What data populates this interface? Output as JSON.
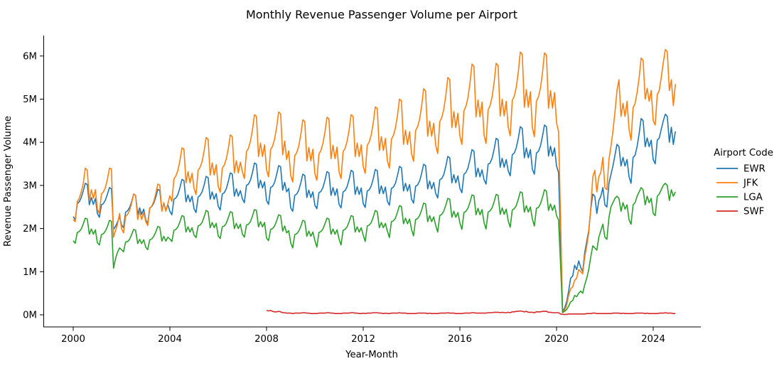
{
  "chart_data": {
    "type": "line",
    "title": "Monthly Revenue Passenger Volume per Airport",
    "xlabel": "Year-Month",
    "ylabel": "Revenue Passenger Volume",
    "legend_title": "Airport Code",
    "legend_position": "right",
    "grid": false,
    "x_unit": "monthly from 2000-01 to 2024-12",
    "y_unit": "millions of revenue passengers",
    "ylim": [
      -0.28,
      6.45
    ],
    "xlim": [
      1998.8,
      2026.0
    ],
    "x_tick_labels": [
      "2000",
      "2004",
      "2008",
      "2012",
      "2016",
      "2020",
      "2024"
    ],
    "y_tick_labels": [
      "0M",
      "1M",
      "2M",
      "3M",
      "4M",
      "5M",
      "6M"
    ],
    "y_tick_values": [
      0,
      1,
      2,
      3,
      4,
      5,
      6
    ],
    "series": [
      {
        "name": "EWR",
        "color": "#1f77b4",
        "start": "2000-01",
        "values_millions": [
          2.28,
          2.2,
          2.58,
          2.62,
          2.72,
          2.88,
          3.05,
          3.02,
          2.55,
          2.72,
          2.56,
          2.7,
          2.35,
          2.26,
          2.55,
          2.58,
          2.66,
          2.8,
          2.95,
          2.92,
          1.98,
          2.05,
          2.15,
          2.28,
          2.08,
          2.02,
          2.38,
          2.41,
          2.49,
          2.62,
          2.8,
          2.77,
          2.33,
          2.48,
          2.33,
          2.45,
          2.2,
          2.12,
          2.48,
          2.51,
          2.59,
          2.73,
          2.91,
          2.88,
          2.43,
          2.58,
          2.43,
          2.55,
          2.4,
          2.32,
          2.68,
          2.71,
          2.79,
          2.95,
          3.14,
          3.11,
          2.62,
          2.78,
          2.62,
          2.75,
          2.46,
          2.37,
          2.73,
          2.77,
          2.85,
          3.01,
          3.21,
          3.18,
          2.68,
          2.85,
          2.68,
          2.81,
          2.52,
          2.43,
          2.8,
          2.83,
          2.92,
          3.09,
          3.29,
          3.26,
          2.75,
          2.92,
          2.75,
          2.88,
          2.69,
          2.6,
          3.0,
          3.03,
          3.12,
          3.3,
          3.52,
          3.49,
          2.94,
          3.12,
          2.94,
          3.08,
          2.65,
          2.56,
          2.95,
          2.98,
          3.07,
          3.25,
          3.46,
          3.43,
          2.89,
          3.07,
          2.85,
          2.93,
          2.48,
          2.4,
          2.77,
          2.8,
          2.89,
          3.06,
          3.26,
          3.23,
          2.72,
          2.89,
          2.72,
          2.85,
          2.54,
          2.46,
          2.83,
          2.86,
          2.95,
          3.12,
          3.32,
          3.29,
          2.77,
          2.95,
          2.77,
          2.92,
          2.56,
          2.48,
          2.85,
          2.88,
          2.97,
          3.14,
          3.35,
          3.32,
          2.79,
          2.97,
          2.79,
          2.94,
          2.58,
          2.49,
          2.87,
          2.9,
          2.99,
          3.16,
          3.37,
          3.34,
          2.81,
          2.99,
          2.81,
          2.96,
          2.63,
          2.54,
          2.93,
          2.96,
          3.05,
          3.23,
          3.44,
          3.41,
          2.87,
          3.05,
          2.87,
          3.02,
          2.68,
          2.59,
          2.98,
          3.01,
          3.1,
          3.28,
          3.49,
          3.46,
          2.92,
          3.1,
          2.92,
          3.07,
          2.81,
          2.71,
          3.13,
          3.16,
          3.25,
          3.44,
          3.67,
          3.64,
          3.06,
          3.25,
          3.06,
          3.22,
          2.93,
          2.83,
          3.26,
          3.3,
          3.4,
          3.6,
          3.83,
          3.79,
          3.2,
          3.4,
          3.2,
          3.36,
          3.13,
          3.03,
          3.49,
          3.52,
          3.63,
          3.84,
          4.09,
          4.06,
          3.42,
          3.63,
          3.42,
          3.6,
          3.34,
          3.22,
          3.71,
          3.75,
          3.87,
          4.09,
          4.36,
          4.32,
          3.64,
          3.87,
          3.64,
          3.83,
          3.37,
          3.26,
          3.75,
          3.79,
          3.91,
          4.14,
          4.4,
          4.36,
          3.68,
          3.91,
          3.68,
          3.87,
          3.45,
          3.3,
          1.7,
          0.08,
          0.15,
          0.3,
          0.55,
          0.85,
          0.9,
          1.15,
          1.05,
          1.25,
          1.1,
          1.0,
          1.45,
          1.7,
          1.95,
          2.45,
          2.8,
          2.75,
          2.35,
          2.65,
          2.75,
          2.95,
          2.55,
          2.5,
          3.05,
          3.25,
          3.45,
          3.7,
          3.95,
          3.9,
          3.45,
          3.65,
          3.45,
          3.6,
          3.2,
          3.05,
          3.65,
          3.7,
          3.9,
          4.2,
          4.55,
          4.5,
          3.9,
          4.1,
          3.9,
          4.05,
          3.6,
          3.5,
          4.05,
          4.1,
          4.3,
          4.5,
          4.65,
          4.6,
          4.0,
          4.35,
          3.95,
          4.25
        ]
      },
      {
        "name": "JFK",
        "color": "#ff7f0e",
        "start": "2000-01",
        "values_millions": [
          2.21,
          2.16,
          2.62,
          2.7,
          2.85,
          3.05,
          3.4,
          3.35,
          2.65,
          2.9,
          2.7,
          2.9,
          2.45,
          2.35,
          2.8,
          2.85,
          2.95,
          3.15,
          3.4,
          3.38,
          1.8,
          1.95,
          2.1,
          2.35,
          2.0,
          1.9,
          2.28,
          2.33,
          2.42,
          2.59,
          2.8,
          2.77,
          2.21,
          2.4,
          2.21,
          2.37,
          2.17,
          2.07,
          2.47,
          2.52,
          2.63,
          2.81,
          3.03,
          3.01,
          2.4,
          2.6,
          2.4,
          2.58,
          2.76,
          2.63,
          3.15,
          3.22,
          3.35,
          3.58,
          3.87,
          3.84,
          3.06,
          3.32,
          3.06,
          3.28,
          2.93,
          2.79,
          3.35,
          3.42,
          3.55,
          3.8,
          4.11,
          4.07,
          3.24,
          3.52,
          3.24,
          3.48,
          2.98,
          2.84,
          3.4,
          3.47,
          3.61,
          3.85,
          4.17,
          4.13,
          3.29,
          3.57,
          3.29,
          3.54,
          3.32,
          3.16,
          3.78,
          3.86,
          4.02,
          4.29,
          4.64,
          4.6,
          3.67,
          3.98,
          3.67,
          3.94,
          3.36,
          3.2,
          3.83,
          3.91,
          4.07,
          4.35,
          4.7,
          4.66,
          3.71,
          4.03,
          3.6,
          3.8,
          3.23,
          3.08,
          3.69,
          3.76,
          3.91,
          4.18,
          4.52,
          4.48,
          3.57,
          3.88,
          3.57,
          3.84,
          3.27,
          3.12,
          3.73,
          3.81,
          3.97,
          4.24,
          4.58,
          4.54,
          3.62,
          3.93,
          3.62,
          3.89,
          3.32,
          3.16,
          3.78,
          3.86,
          4.02,
          4.29,
          4.64,
          4.6,
          3.67,
          3.98,
          3.67,
          3.94,
          3.44,
          3.28,
          3.93,
          4.01,
          4.17,
          4.46,
          4.82,
          4.78,
          3.81,
          4.13,
          3.81,
          4.09,
          3.57,
          3.4,
          4.07,
          4.16,
          4.33,
          4.62,
          5.0,
          4.96,
          3.95,
          4.28,
          3.95,
          4.24,
          3.74,
          3.56,
          4.27,
          4.36,
          4.53,
          4.84,
          5.24,
          5.19,
          4.14,
          4.49,
          4.14,
          4.44,
          3.93,
          3.74,
          4.48,
          4.57,
          4.76,
          5.08,
          5.5,
          5.45,
          4.34,
          4.71,
          4.34,
          4.67,
          4.15,
          3.95,
          4.73,
          4.83,
          5.03,
          5.37,
          5.81,
          5.76,
          4.59,
          4.98,
          4.59,
          4.93,
          4.17,
          3.97,
          4.75,
          4.85,
          5.05,
          5.39,
          5.83,
          5.78,
          4.61,
          5.0,
          4.61,
          4.95,
          4.35,
          4.15,
          4.97,
          5.07,
          5.27,
          5.63,
          6.09,
          6.04,
          4.81,
          5.22,
          4.81,
          5.17,
          4.34,
          4.13,
          4.95,
          5.05,
          5.25,
          5.61,
          6.07,
          6.02,
          4.79,
          5.2,
          4.79,
          5.15,
          4.45,
          4.25,
          2.2,
          0.06,
          0.1,
          0.22,
          0.45,
          0.6,
          0.65,
          0.8,
          0.85,
          1.05,
          1.0,
          0.95,
          1.35,
          1.6,
          1.9,
          2.5,
          3.2,
          3.35,
          2.85,
          3.2,
          3.3,
          3.65,
          2.95,
          2.9,
          3.6,
          3.9,
          4.25,
          4.7,
          5.2,
          5.45,
          4.6,
          4.9,
          4.6,
          4.95,
          4.3,
          4.05,
          4.8,
          4.9,
          5.15,
          5.5,
          5.95,
          5.9,
          5.0,
          5.25,
          4.95,
          5.2,
          4.5,
          4.4,
          5.1,
          5.2,
          5.5,
          5.85,
          6.15,
          6.1,
          5.2,
          5.45,
          4.85,
          5.35
        ]
      },
      {
        "name": "LGA",
        "color": "#2ca02c",
        "start": "2000-01",
        "values_millions": [
          1.72,
          1.66,
          1.91,
          1.93,
          1.99,
          2.11,
          2.24,
          2.22,
          1.87,
          1.99,
          1.87,
          1.97,
          1.67,
          1.62,
          1.86,
          1.88,
          1.94,
          2.05,
          2.19,
          2.17,
          1.08,
          1.3,
          1.45,
          1.55,
          1.51,
          1.46,
          1.69,
          1.7,
          1.75,
          1.86,
          1.98,
          1.96,
          1.65,
          1.75,
          1.65,
          1.74,
          1.57,
          1.51,
          1.74,
          1.76,
          1.82,
          1.92,
          2.05,
          2.03,
          1.71,
          1.82,
          1.71,
          1.8,
          1.76,
          1.7,
          1.96,
          1.98,
          2.04,
          2.16,
          2.3,
          2.28,
          1.92,
          2.04,
          1.92,
          2.02,
          1.85,
          1.79,
          2.06,
          2.08,
          2.14,
          2.27,
          2.42,
          2.39,
          2.02,
          2.14,
          2.02,
          2.12,
          1.83,
          1.77,
          2.04,
          2.06,
          2.12,
          2.25,
          2.39,
          2.37,
          2.0,
          2.12,
          2.0,
          2.1,
          1.87,
          1.8,
          2.08,
          2.1,
          2.16,
          2.29,
          2.44,
          2.42,
          2.04,
          2.16,
          2.04,
          2.14,
          1.78,
          1.72,
          1.98,
          2.0,
          2.06,
          2.18,
          2.32,
          2.3,
          1.94,
          2.06,
          1.9,
          1.95,
          1.67,
          1.55,
          1.86,
          1.88,
          1.94,
          2.05,
          2.19,
          2.17,
          1.82,
          1.94,
          1.82,
          1.92,
          1.72,
          1.57,
          1.91,
          1.93,
          1.99,
          2.11,
          2.24,
          2.22,
          1.87,
          1.99,
          1.87,
          1.97,
          1.76,
          1.62,
          1.96,
          1.98,
          2.04,
          2.16,
          2.3,
          2.28,
          1.92,
          2.04,
          1.92,
          2.02,
          1.85,
          1.7,
          2.06,
          2.08,
          2.14,
          2.27,
          2.42,
          2.39,
          2.02,
          2.14,
          2.02,
          2.12,
          1.94,
          1.79,
          2.16,
          2.18,
          2.24,
          2.38,
          2.53,
          2.51,
          2.11,
          2.24,
          2.11,
          2.22,
          1.98,
          1.83,
          2.21,
          2.23,
          2.3,
          2.43,
          2.59,
          2.57,
          2.16,
          2.3,
          2.16,
          2.27,
          2.07,
          1.92,
          2.3,
          2.33,
          2.4,
          2.54,
          2.7,
          2.68,
          2.26,
          2.4,
          2.26,
          2.37,
          2.13,
          1.98,
          2.37,
          2.4,
          2.47,
          2.61,
          2.78,
          2.76,
          2.32,
          2.47,
          2.32,
          2.44,
          2.14,
          1.99,
          2.38,
          2.41,
          2.48,
          2.62,
          2.79,
          2.77,
          2.33,
          2.48,
          2.33,
          2.45,
          2.18,
          2.03,
          2.43,
          2.46,
          2.53,
          2.68,
          2.85,
          2.83,
          2.38,
          2.53,
          2.38,
          2.5,
          2.22,
          2.06,
          2.47,
          2.49,
          2.57,
          2.72,
          2.9,
          2.87,
          2.42,
          2.57,
          2.42,
          2.54,
          2.3,
          2.2,
          1.15,
          0.05,
          0.08,
          0.12,
          0.2,
          0.3,
          0.33,
          0.45,
          0.42,
          0.5,
          0.55,
          0.5,
          0.7,
          0.85,
          1.05,
          1.35,
          1.6,
          1.55,
          1.5,
          1.8,
          1.95,
          2.1,
          1.8,
          1.75,
          2.25,
          2.5,
          2.6,
          2.7,
          2.75,
          2.7,
          2.4,
          2.6,
          2.45,
          2.55,
          2.2,
          2.1,
          2.55,
          2.6,
          2.75,
          2.85,
          2.95,
          2.9,
          2.55,
          2.75,
          2.6,
          2.7,
          2.35,
          2.3,
          2.75,
          2.8,
          2.9,
          3.0,
          3.05,
          3.0,
          2.65,
          2.9,
          2.75,
          2.85
        ]
      },
      {
        "name": "SWF",
        "color": "#d62728",
        "start": "2008-01",
        "values_millions": [
          0.1,
          0.09,
          0.1,
          0.08,
          0.07,
          0.07,
          0.08,
          0.07,
          0.05,
          0.05,
          0.04,
          0.04,
          0.04,
          0.03,
          0.04,
          0.04,
          0.04,
          0.04,
          0.05,
          0.05,
          0.04,
          0.04,
          0.03,
          0.03,
          0.03,
          0.03,
          0.04,
          0.04,
          0.04,
          0.04,
          0.05,
          0.05,
          0.04,
          0.04,
          0.03,
          0.03,
          0.03,
          0.03,
          0.04,
          0.04,
          0.04,
          0.04,
          0.05,
          0.05,
          0.04,
          0.04,
          0.03,
          0.03,
          0.04,
          0.03,
          0.04,
          0.04,
          0.04,
          0.05,
          0.05,
          0.05,
          0.04,
          0.04,
          0.03,
          0.04,
          0.03,
          0.03,
          0.04,
          0.04,
          0.04,
          0.04,
          0.05,
          0.04,
          0.04,
          0.04,
          0.03,
          0.03,
          0.03,
          0.03,
          0.03,
          0.04,
          0.04,
          0.04,
          0.04,
          0.04,
          0.03,
          0.04,
          0.03,
          0.03,
          0.03,
          0.03,
          0.04,
          0.04,
          0.04,
          0.04,
          0.05,
          0.04,
          0.04,
          0.04,
          0.03,
          0.03,
          0.03,
          0.03,
          0.04,
          0.04,
          0.04,
          0.04,
          0.05,
          0.05,
          0.04,
          0.04,
          0.04,
          0.04,
          0.04,
          0.04,
          0.05,
          0.05,
          0.05,
          0.06,
          0.06,
          0.06,
          0.05,
          0.06,
          0.05,
          0.05,
          0.06,
          0.05,
          0.07,
          0.07,
          0.08,
          0.08,
          0.09,
          0.08,
          0.07,
          0.08,
          0.06,
          0.06,
          0.06,
          0.05,
          0.07,
          0.07,
          0.07,
          0.08,
          0.08,
          0.08,
          0.06,
          0.06,
          0.05,
          0.05,
          0.05,
          0.05,
          0.02,
          0.01,
          0.01,
          0.01,
          0.02,
          0.02,
          0.02,
          0.02,
          0.02,
          0.02,
          0.02,
          0.02,
          0.02,
          0.03,
          0.03,
          0.03,
          0.04,
          0.04,
          0.03,
          0.03,
          0.03,
          0.03,
          0.03,
          0.03,
          0.03,
          0.03,
          0.04,
          0.04,
          0.04,
          0.04,
          0.03,
          0.04,
          0.03,
          0.03,
          0.03,
          0.03,
          0.03,
          0.04,
          0.04,
          0.04,
          0.04,
          0.04,
          0.03,
          0.04,
          0.03,
          0.03,
          0.03,
          0.03,
          0.03,
          0.04,
          0.04,
          0.04,
          0.05,
          0.04,
          0.04,
          0.04,
          0.03,
          0.03
        ]
      }
    ]
  }
}
